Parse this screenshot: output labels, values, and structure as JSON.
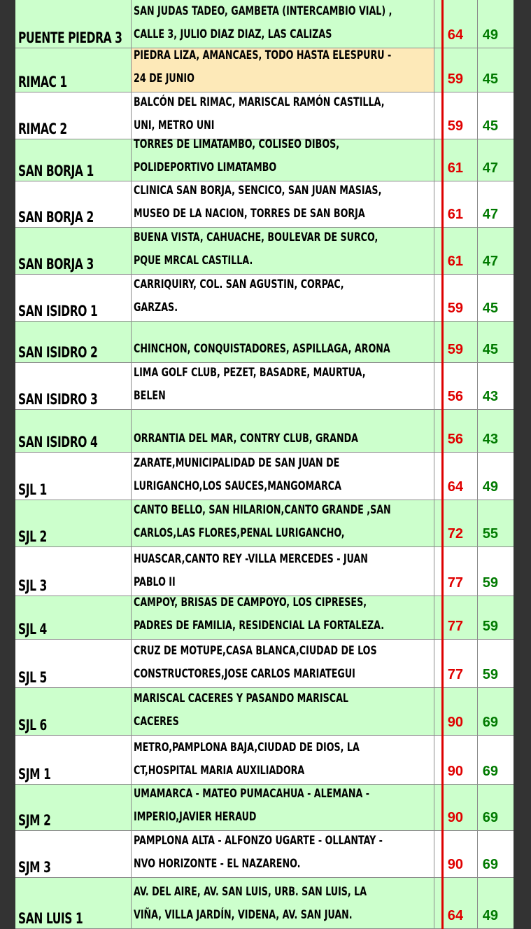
{
  "rows": [
    {
      "name": "PUENTE PIEDRA 3",
      "desc": "SAN JUDAS TADEO, GAMBETA (INTERCAMBIO VIAL) ,\nCALLE 3, JULIO DIAZ DIAZ, LAS CALIZAS",
      "red": "64",
      "green": "49"
    },
    {
      "name": "RIMAC 1",
      "desc": "PIEDRA LIZA, AMANCAES, TODO HASTA ELESPURU -\n24 DE JUNIO",
      "red": "59",
      "green": "45"
    },
    {
      "name": "RIMAC 2",
      "desc": "BALCÓN DEL RIMAC, MARISCAL RAMÓN CASTILLA,\nUNI, METRO UNI",
      "red": "59",
      "green": "45"
    },
    {
      "name": "SAN BORJA 1",
      "desc": "TORRES DE LIMATAMBO, COLISEO DIBOS,\nPOLIDEPORTIVO LIMATAMBO",
      "red": "61",
      "green": "47"
    },
    {
      "name": "SAN BORJA 2",
      "desc": "CLINICA SAN BORJA, SENCICO, SAN JUAN MASIAS,\nMUSEO DE LA NACION, TORRES DE SAN BORJA",
      "red": "61",
      "green": "47"
    },
    {
      "name": "SAN BORJA 3",
      "desc": "BUENA VISTA, CAHUACHE, BOULEVAR DE SURCO,\nPQUE MRCAL CASTILLA.",
      "red": "61",
      "green": "47"
    },
    {
      "name": "SAN ISIDRO 1",
      "desc": "CARRIQUIRY, COL. SAN AGUSTIN, CORPAC,\nGARZAS.",
      "red": "59",
      "green": "45"
    },
    {
      "name": "SAN ISIDRO 2",
      "desc": "CHINCHON, CONQUISTADORES, ASPILLAGA, ARONA",
      "red": "59",
      "green": "45"
    },
    {
      "name": "SAN ISIDRO 3",
      "desc": " LIMA GOLF CLUB, PEZET, BASADRE, MAURTUA,\nBELEN",
      "red": "56",
      "green": "43"
    },
    {
      "name": "SAN ISIDRO 4",
      "desc": "ORRANTIA DEL MAR, CONTRY CLUB, GRANDA",
      "red": "56",
      "green": "43"
    },
    {
      "name": "SJL 1",
      "desc": "ZARATE,MUNICIPALIDAD DE SAN JUAN DE\nLURIGANCHO,LOS SAUCES,MANGOMARCA",
      "red": "64",
      "green": "49"
    },
    {
      "name": "SJL 2",
      "desc": "CANTO BELLO, SAN HILARION,CANTO GRANDE ,SAN\nCARLOS,LAS FLORES,PENAL LURIGANCHO,",
      "red": "72",
      "green": "55"
    },
    {
      "name": "SJL 3",
      "desc": "HUASCAR,CANTO REY -VILLA MERCEDES - JUAN\nPABLO II",
      "red": "77",
      "green": "59"
    },
    {
      "name": "SJL 4",
      "desc": "CAMPOY, BRISAS DE CAMPOYO, LOS CIPRESES,\nPADRES DE FAMILIA, RESIDENCIAL LA FORTALEZA.",
      "red": "77",
      "green": "59"
    },
    {
      "name": "SJL 5",
      "desc": "CRUZ DE MOTUPE,CASA BLANCA,CIUDAD DE LOS\nCONSTRUCTORES,JOSE CARLOS MARIATEGUI",
      "red": "77",
      "green": "59"
    },
    {
      "name": "SJL 6",
      "desc": "MARISCAL CACERES Y PASANDO MARISCAL\nCACERES",
      "red": "90",
      "green": "69"
    },
    {
      "name": "SJM 1",
      "desc": "METRO,PAMPLONA BAJA,CIUDAD DE DIOS, LA\nCT,HOSPITAL MARIA AUXILIADORA",
      "red": "90",
      "green": "69"
    },
    {
      "name": "SJM 2",
      "desc": "UMAMARCA - MATEO PUMACAHUA - ALEMANA -\nIMPERIO,JAVIER HERAUD",
      "red": "90",
      "green": "69"
    },
    {
      "name": "SJM 3",
      "desc": "PAMPLONA ALTA - ALFONZO UGARTE - OLLANTAY -\nNVO HORIZONTE - EL NAZARENO.",
      "red": "90",
      "green": "69"
    },
    {
      "name": "SAN LUIS 1",
      "desc": "AV. DEL AIRE, AV. SAN LUIS, URB. SAN LUIS, LA\nVIÑA, VILLA JARDÍN, VIDENA, AV. SAN JUAN.",
      "red": "64",
      "green": "49"
    }
  ]
}
